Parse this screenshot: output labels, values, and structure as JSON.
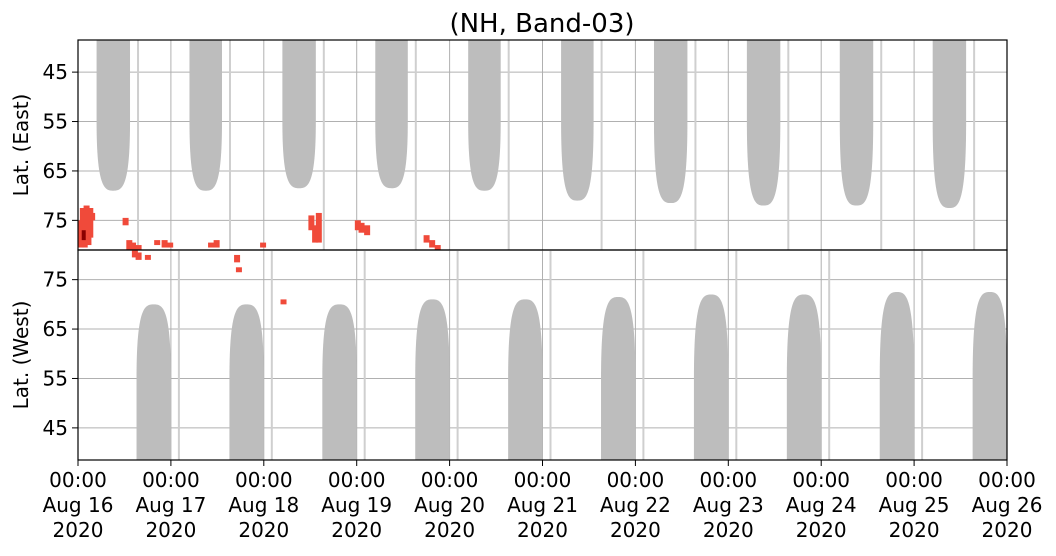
{
  "chart_data": {
    "type": "heatmap",
    "title": "(NH, Band-03)",
    "x_range": [
      "2020-08-16 00:00",
      "2020-08-26 00:00"
    ],
    "x_ticks": [
      [
        "00:00",
        "Aug 16",
        "2020"
      ],
      [
        "00:00",
        "Aug 17",
        "2020"
      ],
      [
        "00:00",
        "Aug 18",
        "2020"
      ],
      [
        "00:00",
        "Aug 19",
        "2020"
      ],
      [
        "00:00",
        "Aug 20",
        "2020"
      ],
      [
        "00:00",
        "Aug 21",
        "2020"
      ],
      [
        "00:00",
        "Aug 22",
        "2020"
      ],
      [
        "00:00",
        "Aug 23",
        "2020"
      ],
      [
        "00:00",
        "Aug 24",
        "2020"
      ],
      [
        "00:00",
        "Aug 25",
        "2020"
      ],
      [
        "00:00",
        "Aug 26",
        "2020"
      ]
    ],
    "grid": true,
    "colors": {
      "no_data": "#bdbdbd",
      "detection": "#f04a3a",
      "detection_dark": "#8b0000"
    },
    "panels": [
      {
        "name": "east",
        "ylabel": "Lat. (East)",
        "y_ticks": [
          45,
          55,
          65,
          75
        ],
        "ylim": [
          81,
          38.5
        ],
        "no_data_blocks": [
          {
            "start": 0.2,
            "end": 0.56,
            "max_lat": 69
          },
          {
            "start": 1.2,
            "end": 1.55,
            "max_lat": 69
          },
          {
            "start": 2.2,
            "end": 2.56,
            "max_lat": 68.5
          },
          {
            "start": 3.2,
            "end": 3.55,
            "max_lat": 68.5
          },
          {
            "start": 4.2,
            "end": 4.55,
            "max_lat": 69
          },
          {
            "start": 5.2,
            "end": 5.55,
            "max_lat": 71
          },
          {
            "start": 6.2,
            "end": 6.56,
            "max_lat": 71.5
          },
          {
            "start": 7.2,
            "end": 7.56,
            "max_lat": 72
          },
          {
            "start": 8.2,
            "end": 8.56,
            "max_lat": 72
          },
          {
            "start": 9.2,
            "end": 9.56,
            "max_lat": 72.5
          }
        ],
        "detections": [
          {
            "t": 0.0,
            "lat_min": 75.0,
            "lat_max": 80.5
          },
          {
            "t": 0.02,
            "lat_min": 72.5,
            "lat_max": 80.0
          },
          {
            "t": 0.04,
            "lat_min": 73.0,
            "lat_max": 80.5
          },
          {
            "t": 0.06,
            "lat_min": 72.0,
            "lat_max": 79.0
          },
          {
            "t": 0.08,
            "lat_min": 73.0,
            "lat_max": 80.0
          },
          {
            "t": 0.1,
            "lat_min": 72.5,
            "lat_max": 78.5
          },
          {
            "t": 0.12,
            "lat_min": 73.5,
            "lat_max": 75.0
          },
          {
            "t": 0.48,
            "lat_min": 74.5,
            "lat_max": 76.0
          },
          {
            "t": 0.52,
            "lat_min": 79.0,
            "lat_max": 81.0
          },
          {
            "t": 0.56,
            "lat_min": 79.5,
            "lat_max": 81.0
          },
          {
            "t": 0.62,
            "lat_min": 80.0,
            "lat_max": 81.0
          },
          {
            "t": 0.82,
            "lat_min": 79.0,
            "lat_max": 80.0
          },
          {
            "t": 0.9,
            "lat_min": 79.0,
            "lat_max": 80.5
          },
          {
            "t": 0.96,
            "lat_min": 79.5,
            "lat_max": 80.5
          },
          {
            "t": 1.4,
            "lat_min": 79.5,
            "lat_max": 80.5
          },
          {
            "t": 1.46,
            "lat_min": 79.0,
            "lat_max": 80.5
          },
          {
            "t": 1.96,
            "lat_min": 79.5,
            "lat_max": 80.5
          },
          {
            "t": 2.48,
            "lat_min": 74.0,
            "lat_max": 77.0
          },
          {
            "t": 2.52,
            "lat_min": 76.0,
            "lat_max": 79.5
          },
          {
            "t": 2.56,
            "lat_min": 73.5,
            "lat_max": 79.5
          },
          {
            "t": 2.98,
            "lat_min": 75.0,
            "lat_max": 77.0
          },
          {
            "t": 3.02,
            "lat_min": 75.5,
            "lat_max": 77.5
          },
          {
            "t": 3.08,
            "lat_min": 76.0,
            "lat_max": 78.0
          },
          {
            "t": 3.72,
            "lat_min": 78.0,
            "lat_max": 79.5
          },
          {
            "t": 3.78,
            "lat_min": 79.0,
            "lat_max": 80.5
          },
          {
            "t": 3.84,
            "lat_min": 80.0,
            "lat_max": 81.0
          }
        ]
      },
      {
        "name": "west",
        "ylabel": "Lat. (West)",
        "y_ticks": [
          75,
          65,
          55,
          45
        ],
        "ylim": [
          81,
          38.5
        ],
        "no_data_blocks": [
          {
            "start": 0.63,
            "end": 1.0,
            "max_lat": 70
          },
          {
            "start": 1.63,
            "end": 2.0,
            "max_lat": 70
          },
          {
            "start": 2.63,
            "end": 3.0,
            "max_lat": 70
          },
          {
            "start": 3.63,
            "end": 4.0,
            "max_lat": 71
          },
          {
            "start": 4.63,
            "end": 5.0,
            "max_lat": 71
          },
          {
            "start": 5.63,
            "end": 6.0,
            "max_lat": 71.5
          },
          {
            "start": 6.63,
            "end": 7.0,
            "max_lat": 72
          },
          {
            "start": 7.63,
            "end": 8.0,
            "max_lat": 72
          },
          {
            "start": 8.63,
            "end": 9.0,
            "max_lat": 72.5
          },
          {
            "start": 9.63,
            "end": 10.0,
            "max_lat": 72.5
          }
        ],
        "detections": [
          {
            "t": 0.58,
            "lat_min": 79.5,
            "lat_max": 81.0
          },
          {
            "t": 0.62,
            "lat_min": 79.0,
            "lat_max": 80.5
          },
          {
            "t": 0.72,
            "lat_min": 79.0,
            "lat_max": 80.0
          },
          {
            "t": 1.68,
            "lat_min": 78.5,
            "lat_max": 80.0
          },
          {
            "t": 1.7,
            "lat_min": 76.5,
            "lat_max": 77.5
          },
          {
            "t": 2.18,
            "lat_min": 70.0,
            "lat_max": 71.0
          }
        ]
      }
    ]
  }
}
